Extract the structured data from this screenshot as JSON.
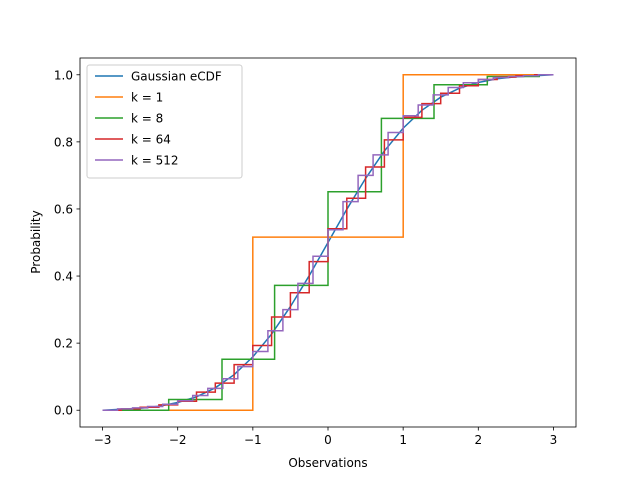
{
  "chart_data": {
    "type": "line",
    "title": "",
    "xlabel": "Observations",
    "ylabel": "Probability",
    "xlim": [
      -3.3,
      3.3
    ],
    "ylim": [
      -0.05,
      1.05
    ],
    "x_ticks": [
      -3,
      -2,
      -1,
      0,
      1,
      2,
      3
    ],
    "x_tick_labels": [
      "−3",
      "−2",
      "−1",
      "0",
      "1",
      "2",
      "3"
    ],
    "y_ticks": [
      0.0,
      0.2,
      0.4,
      0.6,
      0.8,
      1.0
    ],
    "y_tick_labels": [
      "0.0",
      "0.2",
      "0.4",
      "0.6",
      "0.8",
      "1.0"
    ],
    "grid": false,
    "legend": "top-left",
    "series": [
      {
        "name": "Gaussian eCDF",
        "color": "#1f77b4",
        "style": "smooth",
        "x": [
          -3.0,
          -2.75,
          -2.5,
          -2.25,
          -2.0,
          -1.75,
          -1.5,
          -1.25,
          -1.0,
          -0.75,
          -0.5,
          -0.25,
          0.0,
          0.25,
          0.5,
          0.75,
          1.0,
          1.25,
          1.5,
          1.75,
          2.0,
          2.25,
          2.5,
          2.75,
          3.0
        ],
        "y": [
          0.0,
          0.003,
          0.006,
          0.012,
          0.023,
          0.04,
          0.067,
          0.106,
          0.159,
          0.227,
          0.309,
          0.401,
          0.5,
          0.599,
          0.691,
          0.773,
          0.841,
          0.894,
          0.933,
          0.96,
          0.977,
          0.988,
          0.994,
          0.997,
          1.0
        ]
      },
      {
        "name": "k = 1",
        "color": "#ff7f0e",
        "style": "steps",
        "edges": [
          -3.0,
          -1.0,
          1.0,
          3.0
        ],
        "levels": [
          0.0,
          0.516,
          1.0
        ]
      },
      {
        "name": "k = 8",
        "color": "#2ca02c",
        "style": "steps",
        "edges": [
          -2.82,
          -2.12,
          -1.41,
          -0.71,
          0.0,
          0.71,
          1.41,
          2.12,
          2.82
        ],
        "levels": [
          0.0,
          0.032,
          0.152,
          0.372,
          0.651,
          0.87,
          0.97,
          0.995
        ]
      },
      {
        "name": "k = 64",
        "color": "#d62728",
        "style": "steps",
        "edges": [
          -3.0,
          -2.75,
          -2.5,
          -2.25,
          -2.0,
          -1.75,
          -1.5,
          -1.25,
          -1.0,
          -0.75,
          -0.5,
          -0.25,
          0.0,
          0.25,
          0.5,
          0.75,
          1.0,
          1.25,
          1.5,
          1.75,
          2.0,
          2.25,
          2.5,
          2.75,
          3.0
        ],
        "levels": [
          0.0,
          0.004,
          0.009,
          0.016,
          0.027,
          0.054,
          0.081,
          0.136,
          0.193,
          0.278,
          0.35,
          0.443,
          0.541,
          0.632,
          0.725,
          0.806,
          0.873,
          0.914,
          0.945,
          0.967,
          0.986,
          0.993,
          0.997,
          1.0
        ]
      },
      {
        "name": "k = 512",
        "color": "#9467bd",
        "style": "steps",
        "edges": [
          -3.0,
          -2.8,
          -2.6,
          -2.4,
          -2.2,
          -2.0,
          -1.8,
          -1.6,
          -1.4,
          -1.2,
          -1.0,
          -0.8,
          -0.6,
          -0.4,
          -0.2,
          0.0,
          0.2,
          0.4,
          0.6,
          0.8,
          1.0,
          1.2,
          1.4,
          1.6,
          1.8,
          2.0,
          2.2,
          2.4,
          2.6,
          2.8,
          3.0
        ],
        "levels": [
          0.0,
          0.004,
          0.007,
          0.011,
          0.018,
          0.028,
          0.044,
          0.065,
          0.094,
          0.13,
          0.175,
          0.237,
          0.3,
          0.378,
          0.459,
          0.538,
          0.622,
          0.7,
          0.761,
          0.828,
          0.878,
          0.91,
          0.94,
          0.962,
          0.976,
          0.986,
          0.992,
          0.995,
          0.997,
          1.0
        ]
      }
    ]
  }
}
